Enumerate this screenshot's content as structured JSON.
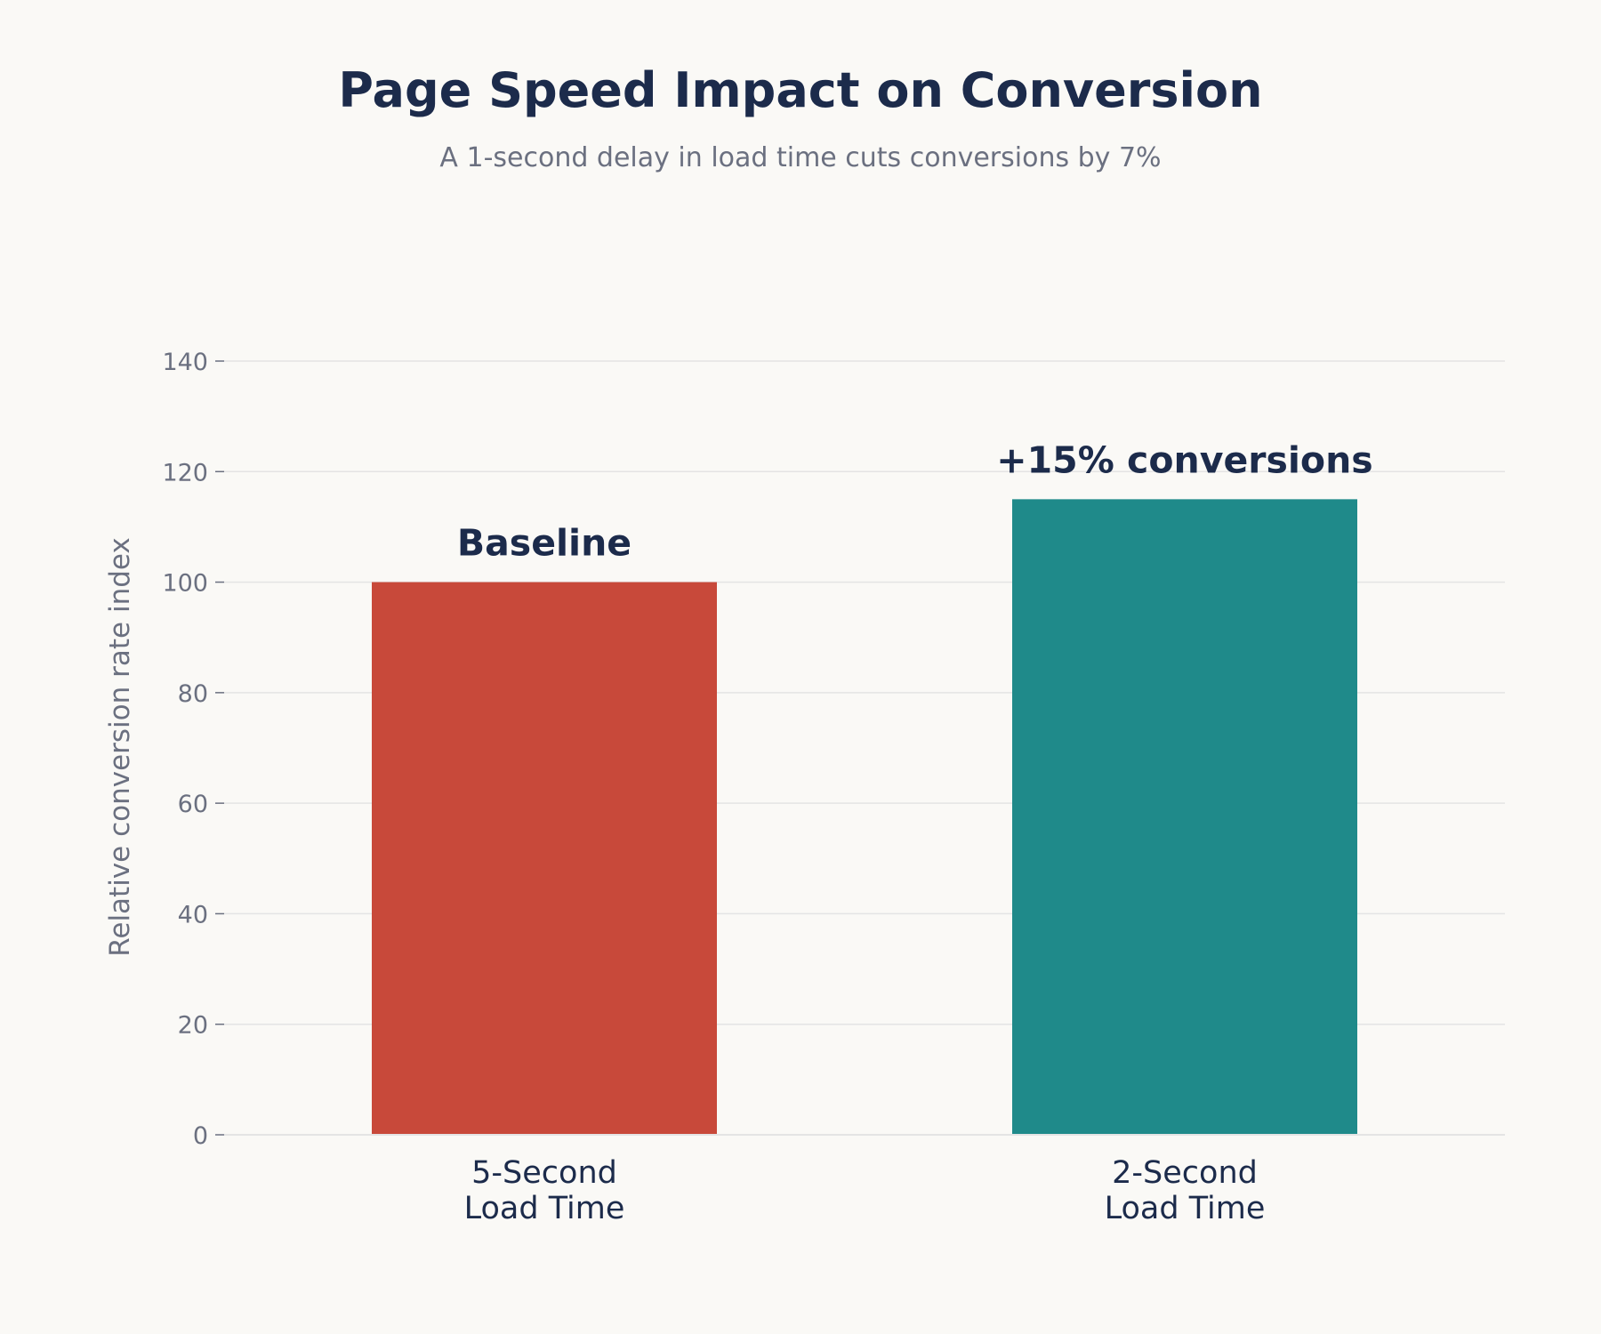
{
  "title": "Page Speed Impact on Conversion",
  "subtitle": "A 1-second delay in load time cuts conversions by 7%",
  "chart_data": {
    "type": "bar",
    "categories": [
      [
        "5-Second",
        "Load Time"
      ],
      [
        "2-Second",
        "Load Time"
      ]
    ],
    "values": [
      100,
      115
    ],
    "annotations": [
      "Baseline",
      "+15% conversions"
    ],
    "bar_colors": [
      "#c8493a",
      "#1f8a8a"
    ],
    "ylabel": "Relative conversion rate index",
    "xlabel": "",
    "ylim": [
      0,
      140
    ],
    "yticks": [
      0,
      20,
      40,
      60,
      80,
      100,
      120,
      140
    ],
    "grid": true,
    "legend": "none"
  },
  "colors": {
    "background": "#faf9f6",
    "title": "#1c2b4b",
    "muted": "#6b7080",
    "grid": "#e4e4e4"
  }
}
